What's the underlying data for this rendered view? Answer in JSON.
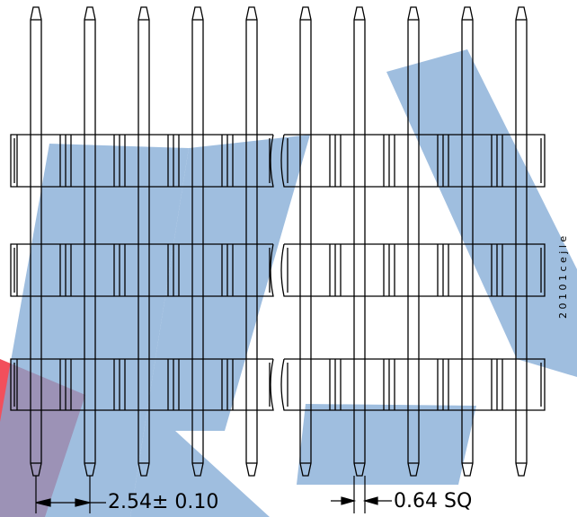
{
  "drawing": {
    "pin_pitch_label": "2.54± 0.10",
    "pin_size_label": "0.64  SQ",
    "side_note": "2  0 1 0 1  c e j  l  e"
  },
  "colors": {
    "line": "#000000",
    "watermark_blue": "#7fa8d4",
    "watermark_red": "#f03040"
  }
}
